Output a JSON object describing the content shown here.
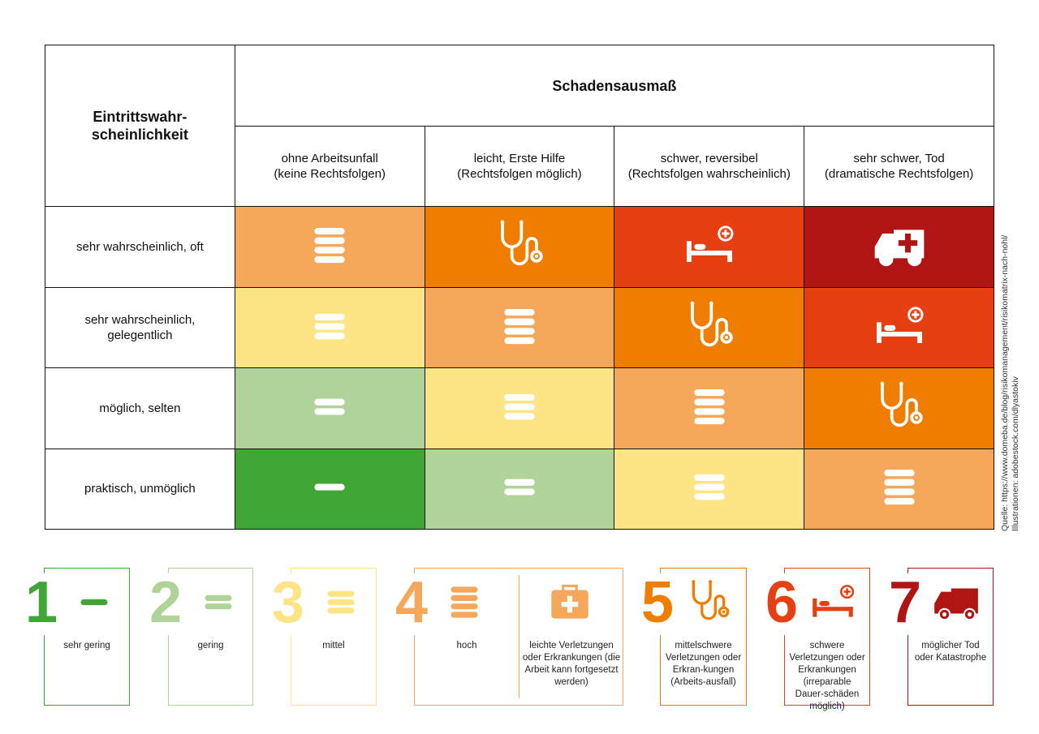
{
  "colors": {
    "1": "#3fa535",
    "2": "#b0d39a",
    "3": "#fde586",
    "4": "#f5a75a",
    "5": "#ef7d00",
    "6": "#e53f12",
    "7": "#b01514"
  },
  "level_icons": {
    "1": "bars-1-icon",
    "2": "bars-2-icon",
    "3": "bars-3-icon",
    "4": "bars-4-icon",
    "5": "stethoscope-icon",
    "6": "hospital-bed-icon",
    "7": "ambulance-icon"
  },
  "matrix": {
    "row_header": "Eintrittswahr-\nscheinlichkeit",
    "col_header": "Schadensausmaß",
    "columns": [
      "ohne Arbeitsunfall\n(keine Rechtsfolgen)",
      "leicht, Erste Hilfe\n(Rechtsfolgen möglich)",
      "schwer, reversibel\n(Rechtsfolgen wahrscheinlich)",
      "sehr schwer, Tod\n(dramatische Rechtsfolgen)"
    ],
    "rows": [
      {
        "label": "sehr wahrscheinlich, oft",
        "levels": [
          4,
          5,
          6,
          7
        ]
      },
      {
        "label": "sehr wahrscheinlich,\ngelegentlich",
        "levels": [
          3,
          4,
          5,
          6
        ]
      },
      {
        "label": "möglich, selten",
        "levels": [
          2,
          3,
          4,
          5
        ]
      },
      {
        "label": "praktisch, unmöglich",
        "levels": [
          1,
          2,
          3,
          4
        ]
      }
    ]
  },
  "source": "Quelle: https://www.domeba.de/blog/risikomanagement/risikomatrix-nach-nohl/\nIllustrationen: adobestock.com/dlyastokiv",
  "legend": [
    {
      "number": "1",
      "label": "sehr gering"
    },
    {
      "number": "2",
      "label": "gering"
    },
    {
      "number": "3",
      "label": "mittel"
    },
    {
      "number": "4",
      "label": "hoch",
      "extra_icon": "first-aid-kit-icon",
      "extra_label": "leichte Verletzungen oder Erkrankungen (die Arbeit kann fortgesetzt werden)"
    },
    {
      "number": "5",
      "label": "mittelschwere Verletzungen oder Erkran-kungen (Arbeits-ausfall)"
    },
    {
      "number": "6",
      "label": "schwere Verletzungen oder Erkrankungen (irreparable Dauer-schäden möglich)"
    },
    {
      "number": "7",
      "label": "möglicher Tod oder Katastrophe"
    }
  ]
}
